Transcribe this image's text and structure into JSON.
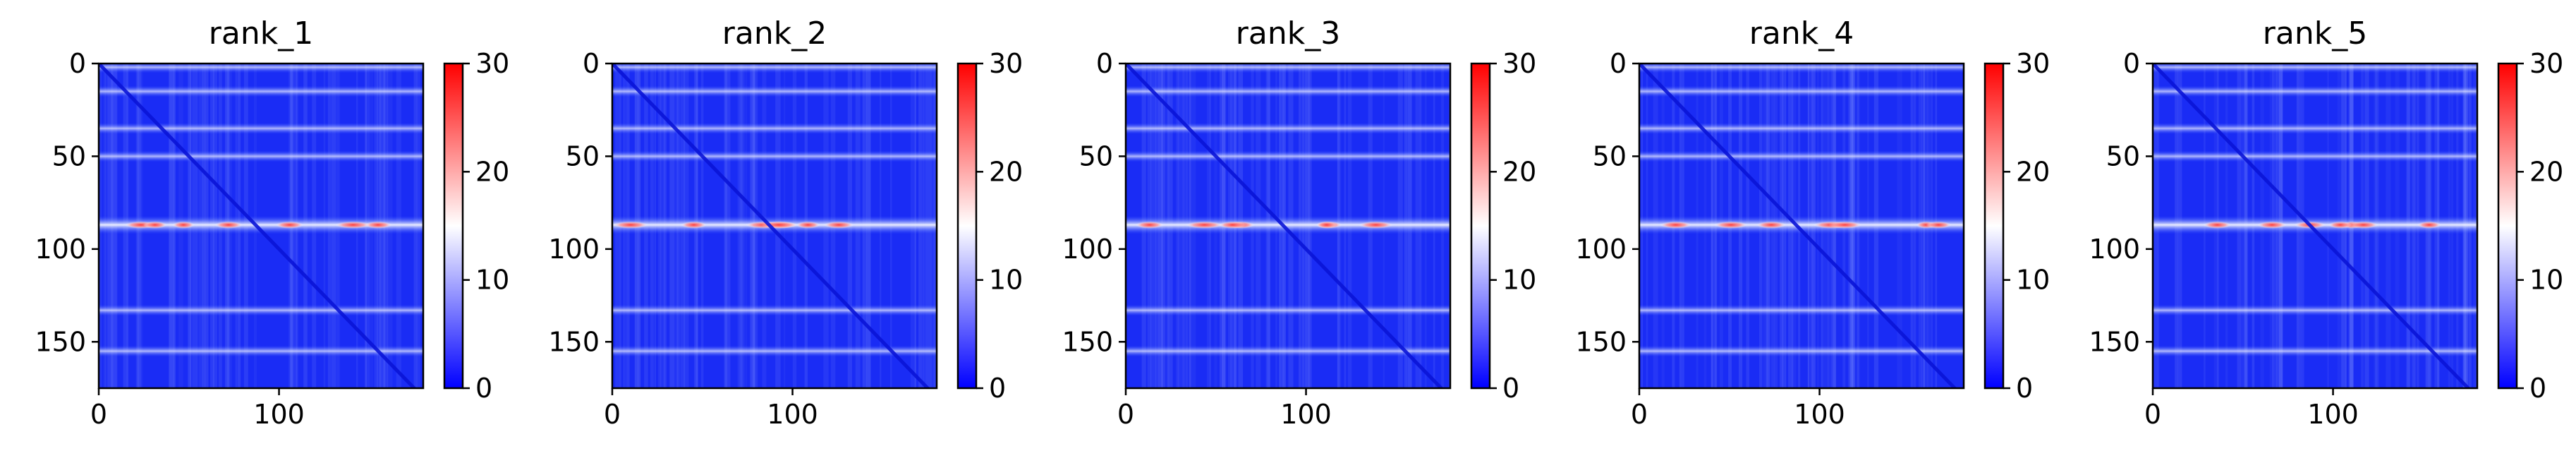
{
  "chart_data": {
    "type": "heatmap",
    "colormap": {
      "name": "bwr",
      "stops": [
        "#0000ff",
        "#ffffff",
        "#ff0000"
      ],
      "range": [
        0,
        30
      ]
    },
    "matrix_size": [
      180,
      180
    ],
    "x_ticks": [
      0,
      100
    ],
    "y_ticks": [
      0,
      50,
      100,
      150
    ],
    "xlim": [
      0,
      180
    ],
    "ylim": [
      175,
      0
    ],
    "colorbar_ticks": [
      0,
      10,
      20,
      30
    ],
    "bright_row_bands_y": [
      2,
      15,
      35,
      50,
      87,
      133,
      155
    ],
    "strongest_band_y": 87,
    "panels": [
      {
        "title": "rank_1"
      },
      {
        "title": "rank_2"
      },
      {
        "title": "rank_3"
      },
      {
        "title": "rank_4"
      },
      {
        "title": "rank_5"
      }
    ]
  }
}
